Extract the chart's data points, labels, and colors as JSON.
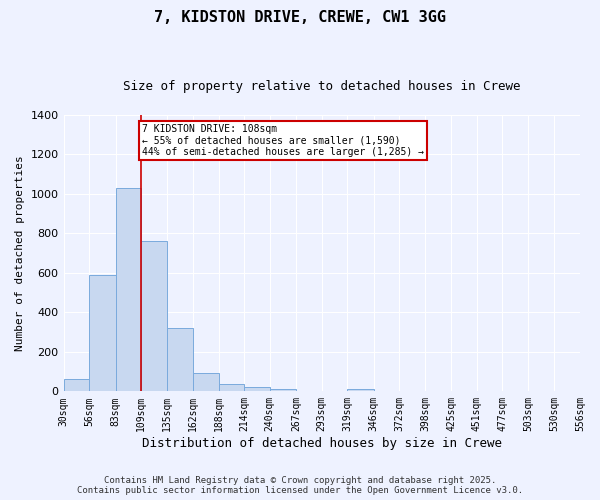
{
  "title1": "7, KIDSTON DRIVE, CREWE, CW1 3GG",
  "title2": "Size of property relative to detached houses in Crewe",
  "xlabel": "Distribution of detached houses by size in Crewe",
  "ylabel": "Number of detached properties",
  "bin_edges": [
    30,
    56,
    83,
    109,
    135,
    162,
    188,
    214,
    240,
    267,
    293,
    319,
    346,
    372,
    398,
    425,
    451,
    477,
    503,
    530,
    556
  ],
  "bar_heights": [
    65,
    590,
    1030,
    760,
    320,
    95,
    35,
    20,
    10,
    0,
    0,
    10,
    0,
    0,
    0,
    0,
    0,
    0,
    0,
    0
  ],
  "bar_color": "#c8d8f0",
  "bar_edge_color": "#7aaadd",
  "vline_x": 109,
  "vline_color": "#cc0000",
  "annotation_text": "7 KIDSTON DRIVE: 108sqm\n← 55% of detached houses are smaller (1,590)\n44% of semi-detached houses are larger (1,285) →",
  "annotation_box_color": "#ffffff",
  "annotation_box_edge": "#cc0000",
  "ylim": [
    0,
    1400
  ],
  "yticks": [
    0,
    200,
    400,
    600,
    800,
    1000,
    1200,
    1400
  ],
  "background_color": "#eef2ff",
  "grid_color": "#ffffff",
  "footer1": "Contains HM Land Registry data © Crown copyright and database right 2025.",
  "footer2": "Contains public sector information licensed under the Open Government Licence v3.0."
}
